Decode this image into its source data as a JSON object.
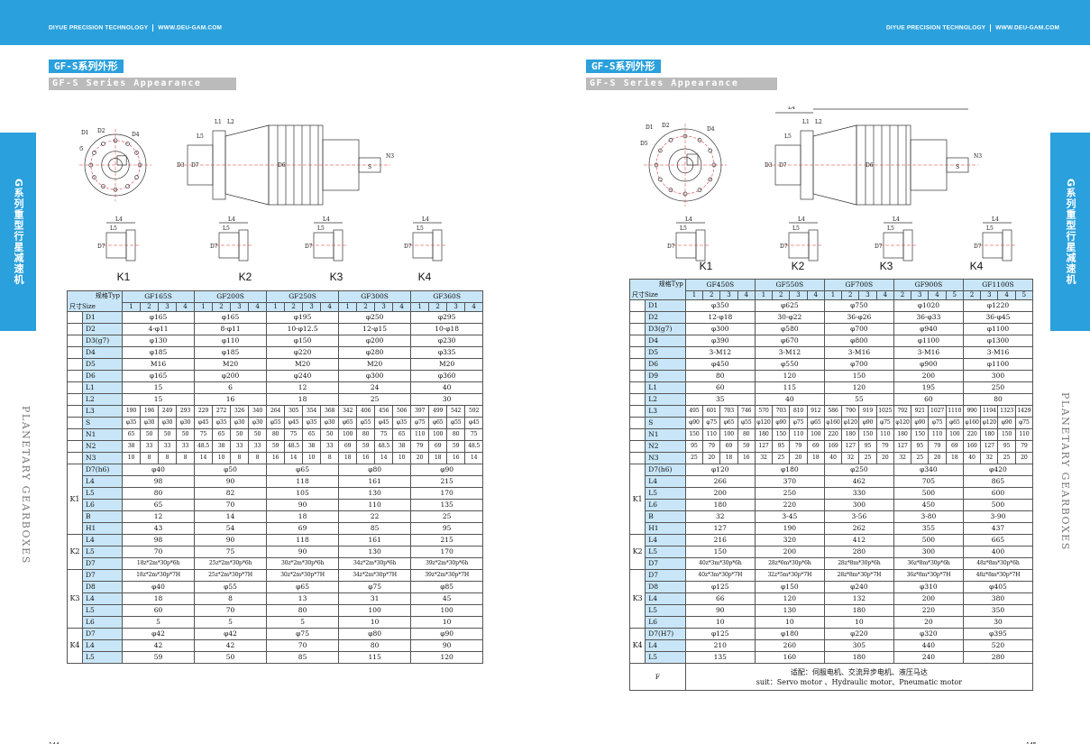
{
  "header": {
    "company": "DIYUE PRECISION TECHNOLOGY",
    "website": "WWW.DEU-GAM.COM"
  },
  "left": {
    "title_zh": "GF-S系列外形",
    "title_en": "GF-S Series Appearance",
    "side_tab": "G系列重型行星减速机",
    "side_text": "PLANETARY GEARBOXES",
    "page_number": "144",
    "k_labels": [
      "K1",
      "K2",
      "K3",
      "K4"
    ],
    "dim_labels": {
      "main": [
        "L4",
        "L3",
        "N1",
        "L1",
        "L2",
        "L5",
        "D3",
        "D7",
        "D6",
        "N3",
        "S",
        "D1",
        "D2",
        "D4",
        "D5",
        "B",
        "H1"
      ],
      "kits": [
        "L4",
        "L5",
        "L6",
        "D7"
      ]
    },
    "table": {
      "corner_top": "规格Typ",
      "corner_bottom": "尺寸Size",
      "models": [
        "GF165S",
        "GF200S",
        "GF250S",
        "GF300S",
        "GF360S"
      ],
      "sub_counts": [
        4,
        4,
        4,
        4,
        4
      ],
      "rows": [
        {
          "label": "D1",
          "cells": [
            "φ165",
            "φ165",
            "φ195",
            "φ250",
            "φ295"
          ]
        },
        {
          "label": "D2",
          "cells": [
            "4-φ11",
            "8-φ11",
            "10-φ12.5",
            "12-φ15",
            "10-φ18"
          ]
        },
        {
          "label": "D3(g7)",
          "cells": [
            "φ130",
            "φ110",
            "φ150",
            "φ200",
            "φ230"
          ]
        },
        {
          "label": "D4",
          "cells": [
            "φ185",
            "φ185",
            "φ220",
            "φ280",
            "φ335"
          ]
        },
        {
          "label": "D5",
          "cells": [
            "M16",
            "M20",
            "M20",
            "M20",
            "M20"
          ]
        },
        {
          "label": "D6",
          "cells": [
            "φ165",
            "φ200",
            "φ240",
            "φ300",
            "φ360"
          ]
        },
        {
          "label": "L1",
          "cells": [
            "15",
            "6",
            "12",
            "24",
            "40"
          ]
        },
        {
          "label": "L2",
          "cells": [
            "15",
            "16",
            "18",
            "25",
            "30"
          ]
        },
        {
          "label": "L3",
          "sub": [
            "190",
            "196",
            "249",
            "293",
            "229",
            "272",
            "326",
            "340",
            "264",
            "305",
            "354",
            "368",
            "342",
            "406",
            "456",
            "506",
            "397",
            "499",
            "542",
            "592"
          ]
        },
        {
          "label": "S",
          "sub": [
            "φ35",
            "φ30",
            "φ30",
            "φ30",
            "φ45",
            "φ35",
            "φ30",
            "φ30",
            "φ55",
            "φ45",
            "φ35",
            "φ30",
            "φ65",
            "φ55",
            "φ45",
            "φ35",
            "φ75",
            "φ65",
            "φ55",
            "φ45"
          ]
        },
        {
          "label": "N1",
          "sub": [
            "65",
            "50",
            "50",
            "50",
            "75",
            "65",
            "50",
            "50",
            "80",
            "75",
            "65",
            "50",
            "100",
            "80",
            "75",
            "65",
            "110",
            "100",
            "80",
            "75"
          ]
        },
        {
          "label": "N2",
          "sub": [
            "38",
            "33",
            "33",
            "33",
            "48.5",
            "38",
            "33",
            "33",
            "59",
            "48.5",
            "38",
            "33",
            "69",
            "59",
            "48.5",
            "38",
            "79",
            "69",
            "59",
            "48.5"
          ]
        },
        {
          "label": "N3",
          "sub": [
            "10",
            "8",
            "8",
            "8",
            "14",
            "10",
            "8",
            "8",
            "16",
            "14",
            "10",
            "8",
            "18",
            "16",
            "14",
            "10",
            "20",
            "18",
            "16",
            "14"
          ]
        }
      ],
      "groups": [
        {
          "name": "K1",
          "rows": [
            {
              "label": "D7(h6)",
              "cells": [
                "φ40",
                "φ50",
                "φ65",
                "φ80",
                "φ90"
              ]
            },
            {
              "label": "L4",
              "cells": [
                "98",
                "90",
                "118",
                "161",
                "215"
              ]
            },
            {
              "label": "L5",
              "cells": [
                "80",
                "82",
                "105",
                "130",
                "170"
              ]
            },
            {
              "label": "L6",
              "cells": [
                "65",
                "70",
                "90",
                "110",
                "135"
              ]
            },
            {
              "label": "B",
              "cells": [
                "12",
                "14",
                "18",
                "22",
                "25"
              ]
            },
            {
              "label": "H1",
              "cells": [
                "43",
                "54",
                "69",
                "85",
                "95"
              ]
            }
          ]
        },
        {
          "name": "K2",
          "rows": [
            {
              "label": "L4",
              "cells": [
                "98",
                "90",
                "118",
                "161",
                "215"
              ]
            },
            {
              "label": "L5",
              "cells": [
                "70",
                "75",
                "90",
                "130",
                "170"
              ]
            },
            {
              "label": "D7",
              "cells": [
                "18z*2m*30p*6h",
                "25z*2m*30p*6h",
                "30z*2m*30p*6h",
                "34z*2m*30p*6h",
                "39z*2m*30p*6h"
              ]
            }
          ]
        },
        {
          "name": "K3",
          "rows": [
            {
              "label": "D7",
              "cells": [
                "18z*2m*30p*7H",
                "25z*2m*30p*7H",
                "30z*2m*30p*7H",
                "34z*2m*30p*7H",
                "39z*2m*30p*7H"
              ]
            },
            {
              "label": "D8",
              "cells": [
                "φ40",
                "φ55",
                "φ65",
                "φ75",
                "φ85"
              ]
            },
            {
              "label": "L4",
              "cells": [
                "18",
                "8",
                "13",
                "31",
                "45"
              ]
            },
            {
              "label": "L5",
              "cells": [
                "60",
                "70",
                "80",
                "100",
                "100"
              ]
            },
            {
              "label": "L6",
              "cells": [
                "5",
                "5",
                "5",
                "10",
                "10"
              ]
            }
          ]
        },
        {
          "name": "K4",
          "rows": [
            {
              "label": "D7",
              "cells": [
                "φ42",
                "φ42",
                "φ75",
                "φ80",
                "φ90"
              ]
            },
            {
              "label": "L4",
              "cells": [
                "42",
                "42",
                "70",
                "80",
                "90"
              ]
            },
            {
              "label": "L5",
              "cells": [
                "59",
                "50",
                "85",
                "115",
                "120"
              ]
            }
          ]
        }
      ]
    }
  },
  "right": {
    "title_zh": "GF-S系列外形",
    "title_en": "GF-S Series Appearance",
    "side_tab": "G系列重型行星减速机",
    "side_text": "PLANETARY GEARBOXES",
    "page_number": "145",
    "k_labels": [
      "K1",
      "K2",
      "K3",
      "K4"
    ],
    "dim_labels": {
      "main": [
        "L4",
        "L3",
        "N1",
        "L1",
        "L2",
        "L5",
        "D3",
        "D7",
        "D6",
        "N3",
        "S",
        "D1",
        "D2",
        "D4",
        "D5",
        "D9",
        "B",
        "H1"
      ],
      "kits": [
        "L4",
        "L5",
        "L6",
        "D7"
      ]
    },
    "table": {
      "corner_top": "规格Typ",
      "corner_bottom": "尺寸Size",
      "models": [
        "GF450S",
        "GF550S",
        "GF700S",
        "GF900S",
        "GF1100S"
      ],
      "sub_counts": [
        4,
        4,
        4,
        4,
        4
      ],
      "sub_labels": [
        [
          "1",
          "2",
          "3",
          "4"
        ],
        [
          "1",
          "2",
          "3",
          "4"
        ],
        [
          "1",
          "2",
          "3",
          "4"
        ],
        [
          "2",
          "3",
          "4",
          "5"
        ],
        [
          "2",
          "3",
          "4",
          "5"
        ]
      ],
      "rows": [
        {
          "label": "D1",
          "cells": [
            "φ350",
            "φ625",
            "φ750",
            "φ1020",
            "φ1220"
          ]
        },
        {
          "label": "D2",
          "cells": [
            "12-φ18",
            "30-φ22",
            "36-φ26",
            "36-φ33",
            "36-φ45"
          ]
        },
        {
          "label": "D3(g7)",
          "cells": [
            "φ300",
            "φ580",
            "φ700",
            "φ940",
            "φ1100"
          ]
        },
        {
          "label": "D4",
          "cells": [
            "φ390",
            "φ670",
            "φ800",
            "φ1100",
            "φ1300"
          ]
        },
        {
          "label": "D5",
          "cells": [
            "3-M12",
            "3-M12",
            "3-M16",
            "3-M16",
            "3-M16"
          ]
        },
        {
          "label": "D6",
          "cells": [
            "φ450",
            "φ550",
            "φ700",
            "φ900",
            "φ1100"
          ]
        },
        {
          "label": "D9",
          "cells": [
            "80",
            "120",
            "150",
            "200",
            "300"
          ]
        },
        {
          "label": "L1",
          "cells": [
            "60",
            "115",
            "120",
            "195",
            "250"
          ]
        },
        {
          "label": "L2",
          "cells": [
            "35",
            "40",
            "55",
            "60",
            "80"
          ]
        },
        {
          "label": "L3",
          "sub": [
            "495",
            "601",
            "703",
            "746",
            "570",
            "703",
            "810",
            "912",
            "586",
            "790",
            "919",
            "1025",
            "792",
            "921",
            "1027",
            "1110",
            "990",
            "1194",
            "1323",
            "1429"
          ]
        },
        {
          "label": "S",
          "sub": [
            "φ90",
            "φ75",
            "φ65",
            "φ55",
            "φ120",
            "φ90",
            "φ75",
            "φ65",
            "φ160",
            "φ120",
            "φ90",
            "φ75",
            "φ120",
            "φ90",
            "φ75",
            "φ65",
            "φ160",
            "φ120",
            "φ90",
            "φ75"
          ]
        },
        {
          "label": "N1",
          "sub": [
            "150",
            "110",
            "100",
            "80",
            "180",
            "150",
            "110",
            "100",
            "220",
            "180",
            "150",
            "110",
            "180",
            "150",
            "110",
            "100",
            "220",
            "180",
            "150",
            "110"
          ]
        },
        {
          "label": "N2",
          "sub": [
            "95",
            "79",
            "69",
            "59",
            "127",
            "95",
            "79",
            "69",
            "169",
            "127",
            "95",
            "79",
            "127",
            "95",
            "79",
            "69",
            "169",
            "127",
            "95",
            "79"
          ]
        },
        {
          "label": "N3",
          "sub": [
            "25",
            "20",
            "18",
            "16",
            "32",
            "25",
            "20",
            "18",
            "40",
            "32",
            "25",
            "20",
            "32",
            "25",
            "20",
            "18",
            "40",
            "32",
            "25",
            "20"
          ]
        }
      ],
      "groups": [
        {
          "name": "K1",
          "rows": [
            {
              "label": "D7(h6)",
              "cells": [
                "φ120",
                "φ180",
                "φ250",
                "φ340",
                "φ420"
              ]
            },
            {
              "label": "L4",
              "cells": [
                "266",
                "370",
                "462",
                "705",
                "865"
              ]
            },
            {
              "label": "L5",
              "cells": [
                "200",
                "250",
                "330",
                "500",
                "600"
              ]
            },
            {
              "label": "L6",
              "cells": [
                "180",
                "220",
                "300",
                "450",
                "500"
              ]
            },
            {
              "label": "B",
              "cells": [
                "32",
                "3-45",
                "3-56",
                "3-80",
                "3-90"
              ]
            },
            {
              "label": "H1",
              "cells": [
                "127",
                "190",
                "262",
                "355",
                "437"
              ]
            }
          ]
        },
        {
          "name": "K2",
          "rows": [
            {
              "label": "L4",
              "cells": [
                "216",
                "320",
                "412",
                "500",
                "665"
              ]
            },
            {
              "label": "L5",
              "cells": [
                "150",
                "200",
                "280",
                "300",
                "400"
              ]
            },
            {
              "label": "D7",
              "cells": [
                "40z*3m*30p*6h",
                "28z*6m*30p*6h",
                "28z*8m*30p*6h",
                "36z*8m*30p*6h",
                "48z*8m*30p*6h"
              ]
            }
          ]
        },
        {
          "name": "K3",
          "rows": [
            {
              "label": "D7",
              "cells": [
                "40z*3m*30p*7H",
                "32z*5m*30p*7H",
                "28z*8m*30p*7H",
                "36z*8m*30p*7H",
                "48z*8m*30p*7H"
              ]
            },
            {
              "label": "D8",
              "cells": [
                "φ125",
                "φ150",
                "φ240",
                "φ310",
                "φ405"
              ]
            },
            {
              "label": "L4",
              "cells": [
                "66",
                "120",
                "132",
                "200",
                "380"
              ]
            },
            {
              "label": "L5",
              "cells": [
                "90",
                "130",
                "180",
                "220",
                "350"
              ]
            },
            {
              "label": "L6",
              "cells": [
                "10",
                "10",
                "10",
                "20",
                "30"
              ]
            }
          ]
        },
        {
          "name": "K4",
          "rows": [
            {
              "label": "D7(H7)",
              "cells": [
                "φ125",
                "φ180",
                "φ220",
                "φ320",
                "φ395"
              ]
            },
            {
              "label": "L4",
              "cells": [
                "210",
                "260",
                "305",
                "440",
                "520"
              ]
            },
            {
              "label": "L5",
              "cells": [
                "135",
                "160",
                "180",
                "240",
                "280"
              ]
            }
          ]
        }
      ],
      "footer": {
        "label": "F",
        "line_zh": "适配：伺服电机、交流异步电机、液压马达",
        "line_en": "suit：Servo motor 、Hydraulic motor、Pneumatic motor"
      }
    }
  }
}
